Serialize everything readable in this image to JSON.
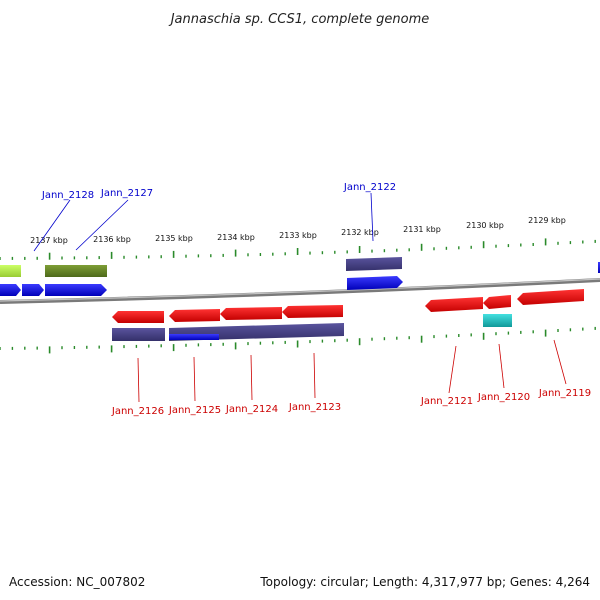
{
  "title": "Jannaschia sp. CCS1, complete genome",
  "footer": {
    "accession": "Accession: NC_007802",
    "topology": "Topology: circular; Length: 4,317,977 bp; Genes: 4,264"
  },
  "ticks": [
    "2137 kbp",
    "2136 kbp",
    "2135 kbp",
    "2134 kbp",
    "2133 kbp",
    "2132 kbp",
    "2131 kbp",
    "2130 kbp",
    "2129 kbp"
  ],
  "genes_top": [
    {
      "name": "Jann_2128",
      "color": "#0000cc"
    },
    {
      "name": "Jann_2127",
      "color": "#0000cc"
    },
    {
      "name": "Jann_2122",
      "color": "#0000cc"
    }
  ],
  "genes_bottom": [
    {
      "name": "Jann_2126",
      "color": "#cc0000"
    },
    {
      "name": "Jann_2125",
      "color": "#cc0000"
    },
    {
      "name": "Jann_2124",
      "color": "#cc0000"
    },
    {
      "name": "Jann_2123",
      "color": "#cc0000"
    },
    {
      "name": "Jann_2121",
      "color": "#cc0000"
    },
    {
      "name": "Jann_2120",
      "color": "#cc0000"
    },
    {
      "name": "Jann_2119",
      "color": "#cc0000"
    }
  ],
  "colors": {
    "backbone": "#8a8a8a",
    "tick": "#2a8a2a",
    "forward_cds": "#0000ee",
    "reverse_cds": "#ee0000",
    "gene_block": "#4a4488",
    "lime": "#bbee55",
    "olive": "#6a8a2a",
    "cyan": "#22cccc"
  }
}
